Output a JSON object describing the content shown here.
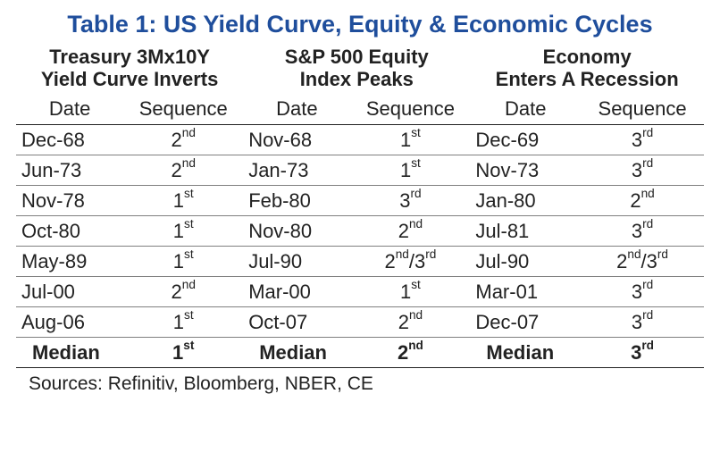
{
  "title": "Table 1: US Yield Curve, Equity & Economic Cycles",
  "colors": {
    "title": "#1f4e9c",
    "text": "#222222",
    "rule_strong": "#222222",
    "rule_light": "#808080",
    "background": "#ffffff"
  },
  "fontsizes": {
    "title": 27,
    "body": 22,
    "source": 21
  },
  "groups": [
    {
      "line1": "Treasury 3Mx10Y",
      "line2": "Yield Curve Inverts"
    },
    {
      "line1": "S&P 500 Equity",
      "line2": "Index Peaks"
    },
    {
      "line1": "Economy",
      "line2": "Enters A Recession"
    }
  ],
  "subheads": {
    "date": "Date",
    "sequence": "Sequence"
  },
  "rows": [
    {
      "c0": {
        "date": "Dec-68",
        "seq_n": "2",
        "seq_suf": "nd"
      },
      "c1": {
        "date": "Nov-68",
        "seq_n": "1",
        "seq_suf": "st"
      },
      "c2": {
        "date": "Dec-69",
        "seq_n": "3",
        "seq_suf": "rd"
      }
    },
    {
      "c0": {
        "date": "Jun-73",
        "seq_n": "2",
        "seq_suf": "nd"
      },
      "c1": {
        "date": "Jan-73",
        "seq_n": "1",
        "seq_suf": "st"
      },
      "c2": {
        "date": "Nov-73",
        "seq_n": "3",
        "seq_suf": "rd"
      }
    },
    {
      "c0": {
        "date": "Nov-78",
        "seq_n": "1",
        "seq_suf": "st"
      },
      "c1": {
        "date": "Feb-80",
        "seq_n": "3",
        "seq_suf": "rd"
      },
      "c2": {
        "date": "Jan-80",
        "seq_n": "2",
        "seq_suf": "nd"
      }
    },
    {
      "c0": {
        "date": "Oct-80",
        "seq_n": "1",
        "seq_suf": "st"
      },
      "c1": {
        "date": "Nov-80",
        "seq_n": "2",
        "seq_suf": "nd"
      },
      "c2": {
        "date": "Jul-81",
        "seq_n": "3",
        "seq_suf": "rd"
      }
    },
    {
      "c0": {
        "date": "May-89",
        "seq_n": "1",
        "seq_suf": "st"
      },
      "c1": {
        "date": "Jul-90",
        "seq_n": "2",
        "seq_suf": "nd",
        "seq2_n": "3",
        "seq2_suf": "rd"
      },
      "c2": {
        "date": "Jul-90",
        "seq_n": "2",
        "seq_suf": "nd",
        "seq2_n": "3",
        "seq2_suf": "rd"
      }
    },
    {
      "c0": {
        "date": "Jul-00",
        "seq_n": "2",
        "seq_suf": "nd"
      },
      "c1": {
        "date": "Mar-00",
        "seq_n": "1",
        "seq_suf": "st"
      },
      "c2": {
        "date": "Mar-01",
        "seq_n": "3",
        "seq_suf": "rd"
      }
    },
    {
      "c0": {
        "date": "Aug-06",
        "seq_n": "1",
        "seq_suf": "st"
      },
      "c1": {
        "date": "Oct-07",
        "seq_n": "2",
        "seq_suf": "nd"
      },
      "c2": {
        "date": "Dec-07",
        "seq_n": "3",
        "seq_suf": "rd"
      }
    }
  ],
  "median": {
    "label": "Median",
    "c0": {
      "seq_n": "1",
      "seq_suf": "st"
    },
    "c1": {
      "seq_n": "2",
      "seq_suf": "nd"
    },
    "c2": {
      "seq_n": "3",
      "seq_suf": "rd"
    }
  },
  "source": "Sources: Refinitiv, Bloomberg, NBER, CE"
}
